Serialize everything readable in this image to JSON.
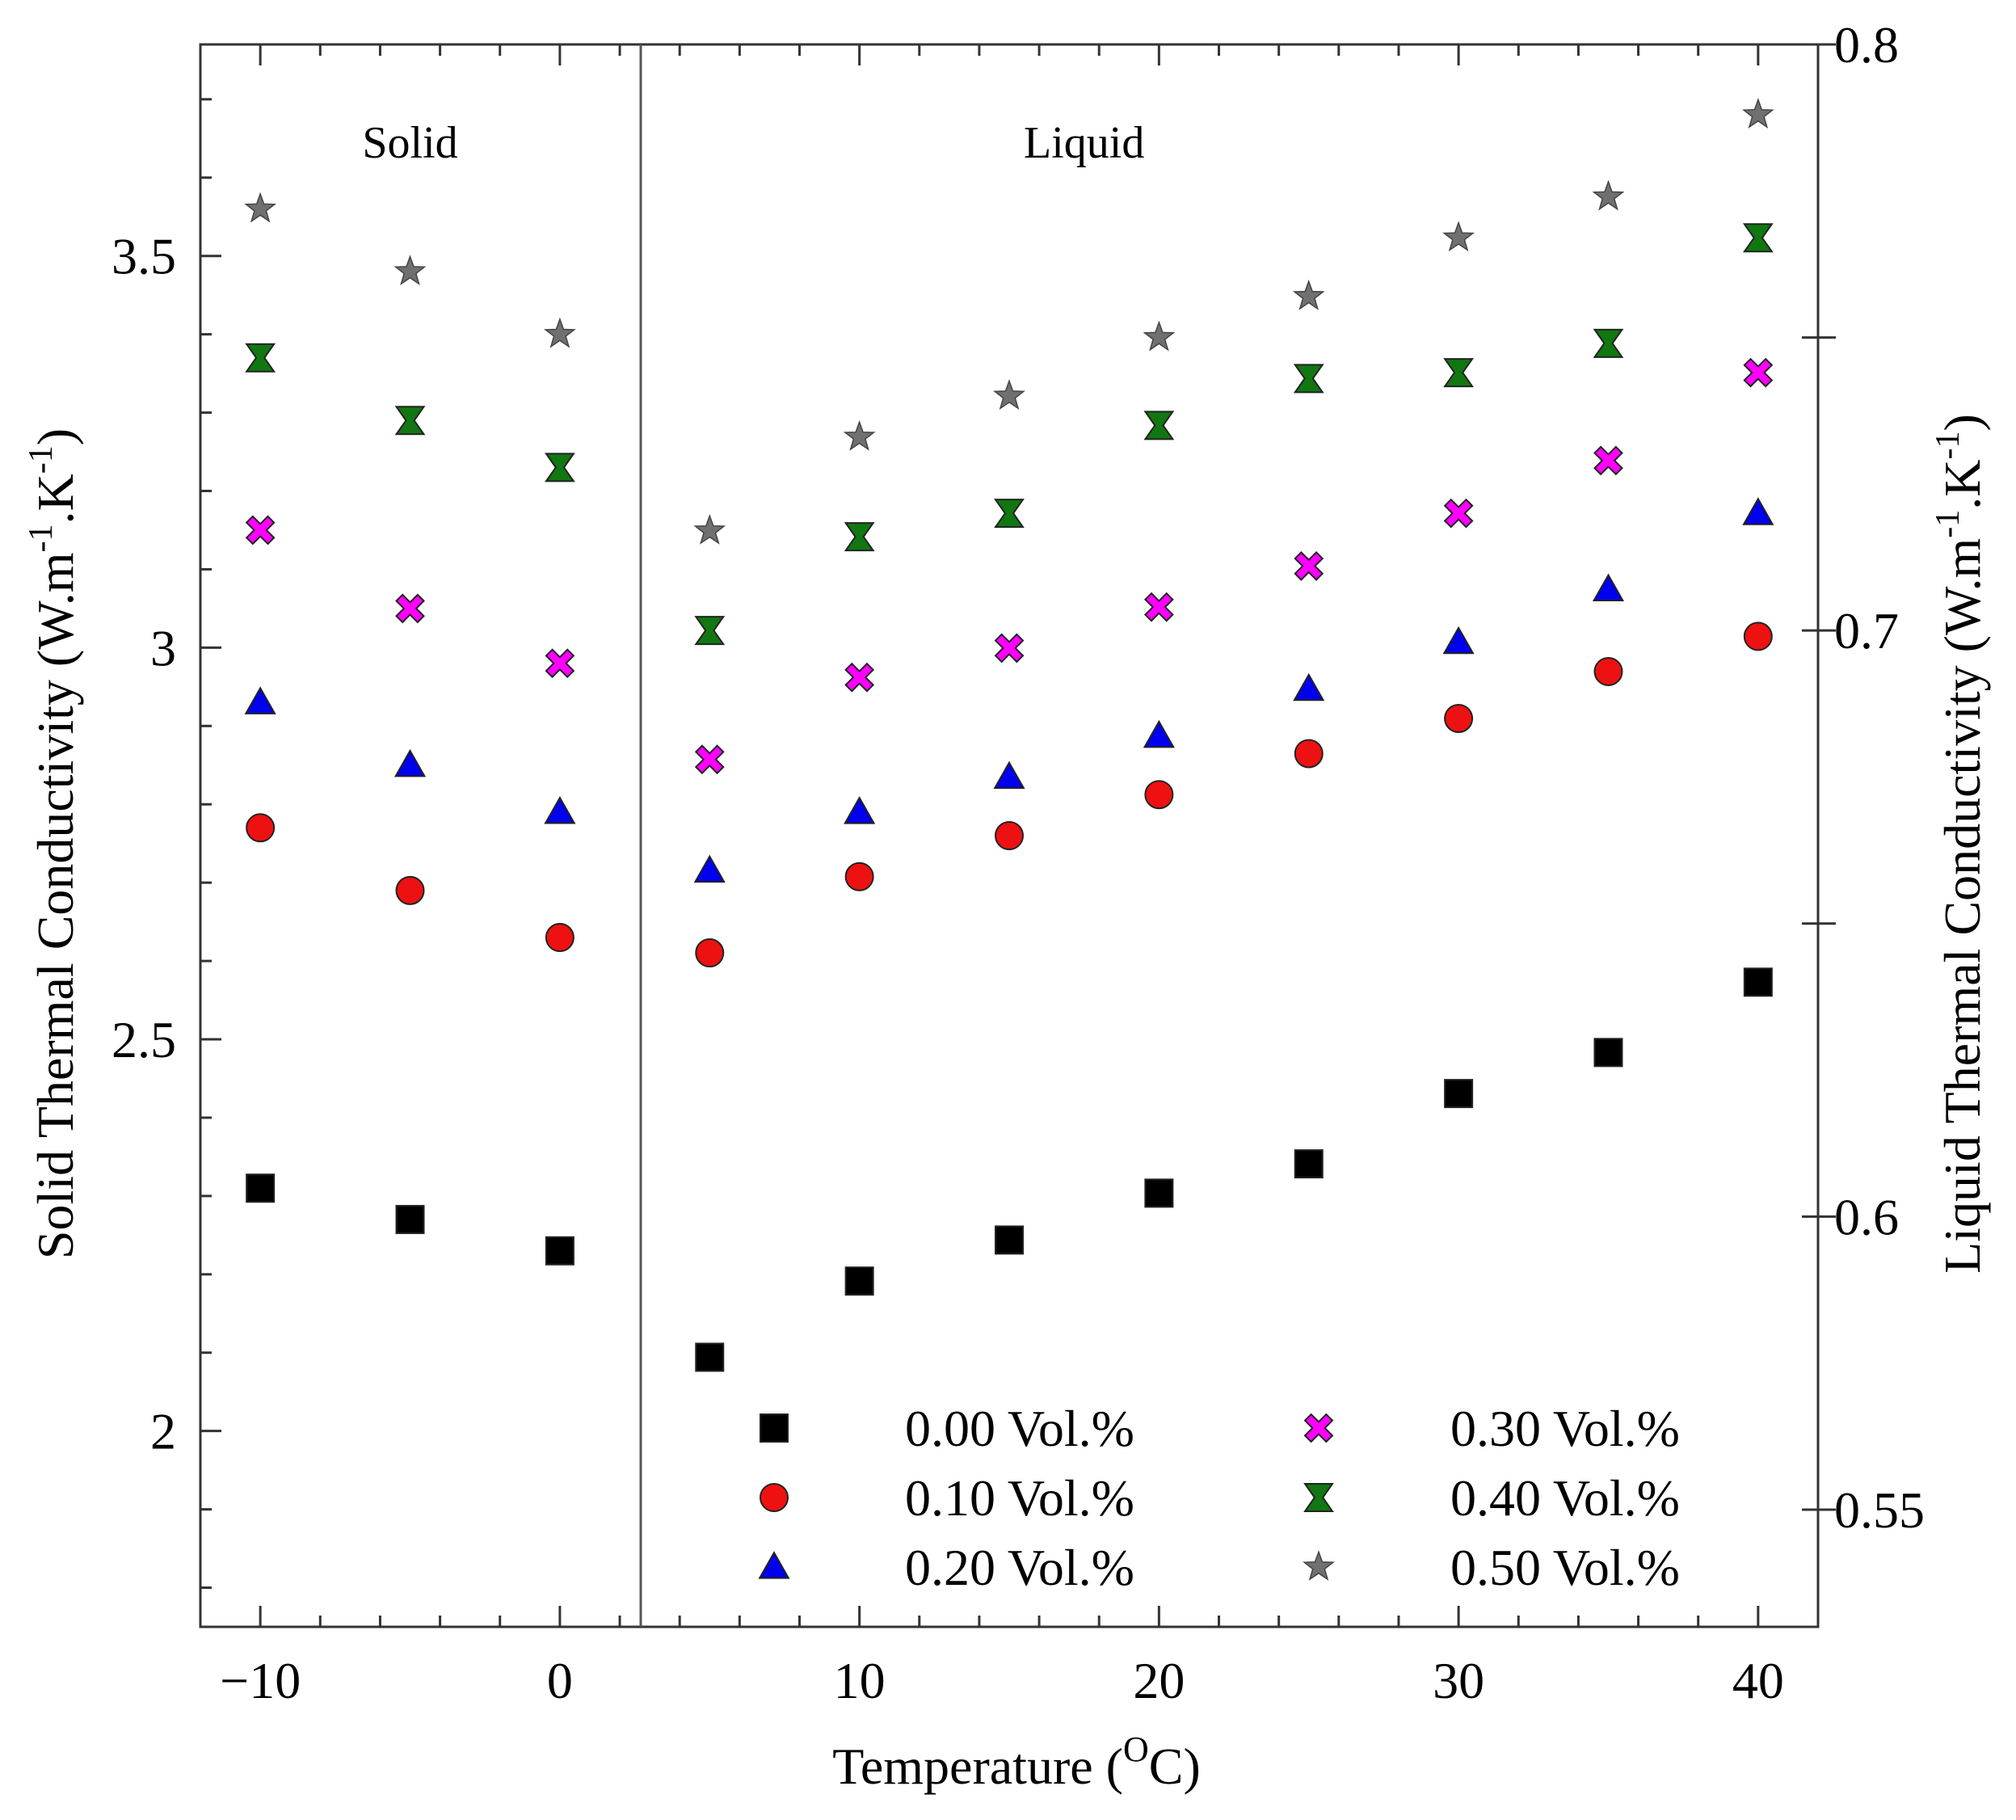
{
  "chart_data": {
    "type": "scatter",
    "xlabel": "Temperature (",
    "xlabel_superscript": "O",
    "xlabel_suffix": "C)",
    "ylabel_left_parts": [
      "Solid Thermal Conductivity (W.m",
      "-1",
      ".K",
      "-1",
      ")"
    ],
    "ylabel_right_parts": [
      "Liquid Thermal Conductivity (W.m",
      "-1",
      ".K",
      "-1",
      ")"
    ],
    "xlim": [
      -12,
      42
    ],
    "ylim_left": [
      1.75,
      3.77
    ],
    "ylim_right": [
      0.53,
      0.8
    ],
    "x_ticks": [
      -10,
      0,
      10,
      20,
      30,
      40
    ],
    "x_tick_labels": [
      "−10",
      "0",
      "10",
      "20",
      "30",
      "40"
    ],
    "y_left_ticks": [
      2,
      2.5,
      3,
      3.5
    ],
    "y_left_tick_labels": [
      "2",
      "2.5",
      "3",
      "3.5"
    ],
    "y_right_ticks": [
      0.55,
      0.6,
      0.7,
      0.8
    ],
    "y_right_tick_labels": [
      "0.55",
      "0.6",
      "0.7",
      "0.8"
    ],
    "regions": [
      {
        "label": "Solid",
        "x": -5
      },
      {
        "label": "Liquid",
        "x": 17.5
      }
    ],
    "phase_boundary_x": 2.7,
    "solid_x": [
      -10,
      -5,
      0
    ],
    "liquid_x": [
      5,
      10,
      15,
      20,
      25,
      30,
      35,
      40
    ],
    "series": [
      {
        "name": "0.00 Vol.%",
        "marker": "square",
        "color": "#000000",
        "solid": [
          2.31,
          2.27,
          2.23
        ],
        "liquid": [
          0.576,
          0.589,
          0.596,
          0.604,
          0.609,
          0.621,
          0.628,
          0.64
        ]
      },
      {
        "name": "0.10 Vol.%",
        "marker": "circle",
        "color": "#ee1111",
        "solid": [
          2.77,
          2.69,
          2.63
        ],
        "liquid": [
          0.645,
          0.658,
          0.665,
          0.672,
          0.679,
          0.685,
          0.693,
          0.699
        ]
      },
      {
        "name": "0.20 Vol.%",
        "marker": "triangle",
        "color": "#0000ee",
        "solid": [
          2.93,
          2.85,
          2.79
        ],
        "liquid": [
          0.659,
          0.669,
          0.675,
          0.682,
          0.69,
          0.698,
          0.707,
          0.72
        ]
      },
      {
        "name": "0.30 Vol.%",
        "marker": "x",
        "color": "#ff00ff",
        "solid": [
          3.15,
          3.05,
          2.98
        ],
        "liquid": [
          0.678,
          0.692,
          0.697,
          0.704,
          0.711,
          0.72,
          0.729,
          0.744
        ]
      },
      {
        "name": "0.40 Vol.%",
        "marker": "hourglass",
        "color": "#117711",
        "solid": [
          3.37,
          3.29,
          3.23
        ],
        "liquid": [
          0.7,
          0.716,
          0.72,
          0.735,
          0.743,
          0.744,
          0.749,
          0.767
        ]
      },
      {
        "name": "0.50 Vol.%",
        "marker": "star",
        "color": "#707070",
        "solid": [
          3.56,
          3.48,
          3.4
        ],
        "liquid": [
          0.717,
          0.733,
          0.74,
          0.75,
          0.757,
          0.767,
          0.774,
          0.788
        ]
      }
    ],
    "legend_position": "bottom-right"
  }
}
